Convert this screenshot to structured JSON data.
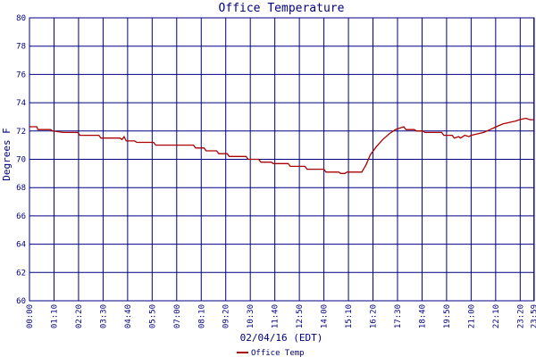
{
  "chart_data": {
    "type": "line",
    "title": "Office Temperature",
    "xlabel": "02/04/16 (EDT)",
    "ylabel": "Degrees F",
    "ylim": [
      60,
      80
    ],
    "yticks": [
      60,
      62,
      64,
      66,
      68,
      70,
      72,
      74,
      76,
      78,
      80
    ],
    "xlim_hours": [
      0,
      24
    ],
    "xticks": [
      {
        "label": "00:00",
        "hour": 0.0
      },
      {
        "label": "01:10",
        "hour": 1.1667
      },
      {
        "label": "02:20",
        "hour": 2.3333
      },
      {
        "label": "03:30",
        "hour": 3.5
      },
      {
        "label": "04:40",
        "hour": 4.6667
      },
      {
        "label": "05:50",
        "hour": 5.8333
      },
      {
        "label": "07:00",
        "hour": 7.0
      },
      {
        "label": "08:10",
        "hour": 8.1667
      },
      {
        "label": "09:20",
        "hour": 9.3333
      },
      {
        "label": "10:30",
        "hour": 10.5
      },
      {
        "label": "11:40",
        "hour": 11.6667
      },
      {
        "label": "12:50",
        "hour": 12.8333
      },
      {
        "label": "14:00",
        "hour": 14.0
      },
      {
        "label": "15:10",
        "hour": 15.1667
      },
      {
        "label": "16:20",
        "hour": 16.3333
      },
      {
        "label": "17:30",
        "hour": 17.5
      },
      {
        "label": "18:40",
        "hour": 18.6667
      },
      {
        "label": "19:50",
        "hour": 19.8333
      },
      {
        "label": "21:00",
        "hour": 21.0
      },
      {
        "label": "22:10",
        "hour": 22.1667
      },
      {
        "label": "23:20",
        "hour": 23.3333
      },
      {
        "label": "23:59",
        "hour": 23.9833
      }
    ],
    "grid": true,
    "legend_position": "bottom-left",
    "series": [
      {
        "name": "Office Temp",
        "color": "#aa0000",
        "points": [
          [
            0.0,
            72.3
          ],
          [
            0.35,
            72.3
          ],
          [
            0.4,
            72.1
          ],
          [
            1.0,
            72.1
          ],
          [
            1.1,
            72.0
          ],
          [
            1.6,
            71.9
          ],
          [
            2.3,
            71.9
          ],
          [
            2.4,
            71.7
          ],
          [
            3.3,
            71.7
          ],
          [
            3.4,
            71.5
          ],
          [
            4.3,
            71.5
          ],
          [
            4.4,
            71.4
          ],
          [
            4.5,
            71.6
          ],
          [
            4.6,
            71.3
          ],
          [
            5.0,
            71.3
          ],
          [
            5.1,
            71.2
          ],
          [
            5.9,
            71.2
          ],
          [
            6.0,
            71.0
          ],
          [
            7.8,
            71.0
          ],
          [
            7.9,
            70.8
          ],
          [
            8.3,
            70.8
          ],
          [
            8.4,
            70.6
          ],
          [
            8.9,
            70.6
          ],
          [
            9.0,
            70.4
          ],
          [
            9.4,
            70.4
          ],
          [
            9.5,
            70.2
          ],
          [
            10.3,
            70.2
          ],
          [
            10.4,
            70.0
          ],
          [
            10.9,
            70.0
          ],
          [
            11.0,
            69.8
          ],
          [
            11.5,
            69.8
          ],
          [
            11.6,
            69.7
          ],
          [
            12.3,
            69.7
          ],
          [
            12.4,
            69.5
          ],
          [
            13.1,
            69.5
          ],
          [
            13.2,
            69.3
          ],
          [
            14.0,
            69.3
          ],
          [
            14.1,
            69.1
          ],
          [
            14.7,
            69.1
          ],
          [
            14.8,
            69.0
          ],
          [
            15.0,
            69.0
          ],
          [
            15.1,
            69.1
          ],
          [
            15.8,
            69.1
          ],
          [
            16.0,
            69.6
          ],
          [
            16.2,
            70.3
          ],
          [
            16.5,
            70.9
          ],
          [
            16.8,
            71.4
          ],
          [
            17.1,
            71.8
          ],
          [
            17.4,
            72.1
          ],
          [
            17.6,
            72.2
          ],
          [
            17.8,
            72.3
          ],
          [
            17.9,
            72.1
          ],
          [
            18.3,
            72.1
          ],
          [
            18.4,
            72.0
          ],
          [
            18.7,
            72.0
          ],
          [
            18.8,
            71.9
          ],
          [
            19.6,
            71.9
          ],
          [
            19.7,
            71.7
          ],
          [
            20.1,
            71.7
          ],
          [
            20.2,
            71.5
          ],
          [
            20.4,
            71.6
          ],
          [
            20.5,
            71.5
          ],
          [
            20.7,
            71.7
          ],
          [
            20.9,
            71.6
          ],
          [
            21.0,
            71.7
          ],
          [
            21.3,
            71.8
          ],
          [
            21.6,
            71.9
          ],
          [
            21.9,
            72.1
          ],
          [
            22.2,
            72.3
          ],
          [
            22.5,
            72.5
          ],
          [
            22.8,
            72.6
          ],
          [
            23.1,
            72.7
          ],
          [
            23.3,
            72.8
          ],
          [
            23.6,
            72.9
          ],
          [
            23.8,
            72.8
          ],
          [
            23.98,
            72.8
          ]
        ]
      }
    ]
  }
}
